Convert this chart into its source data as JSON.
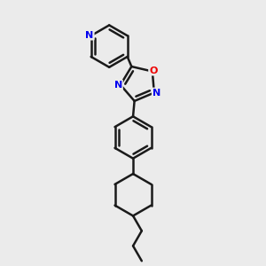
{
  "background_color": "#ebebeb",
  "bond_color": "#1a1a1a",
  "bond_width": 1.8,
  "atom_colors": {
    "N": "#0000ee",
    "O": "#ee0000"
  },
  "figsize": [
    3.0,
    3.0
  ],
  "dpi": 100
}
